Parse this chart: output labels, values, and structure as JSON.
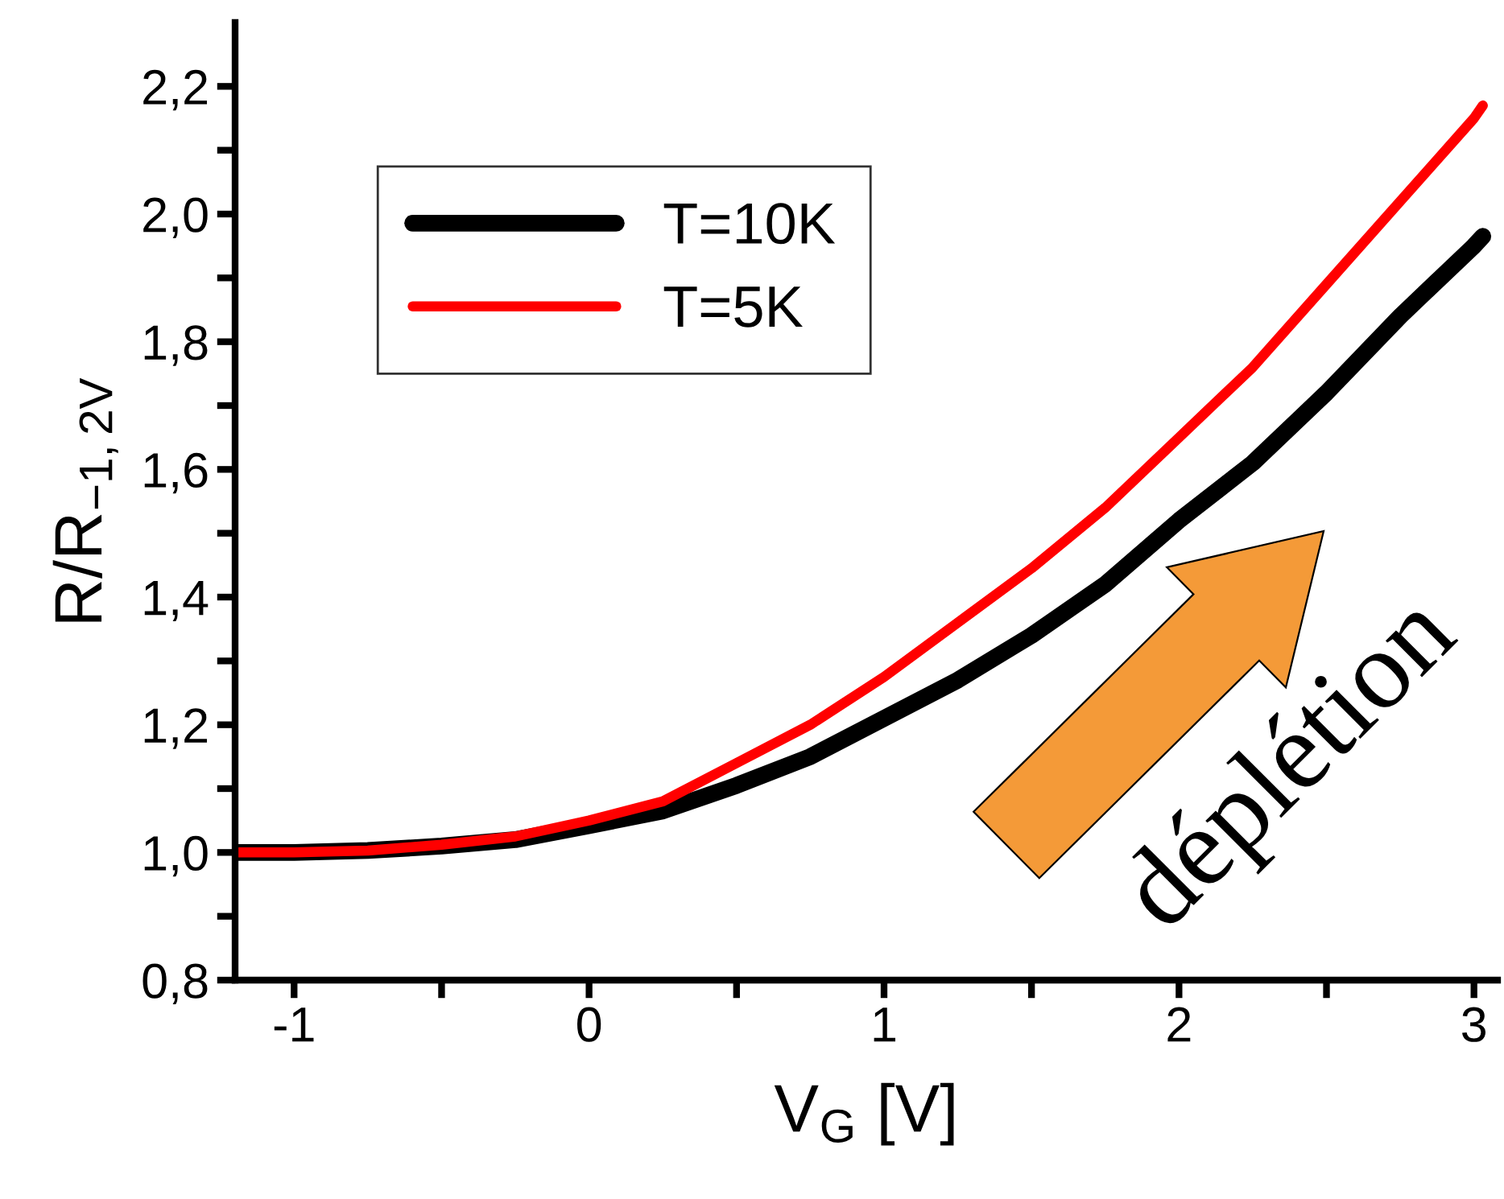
{
  "chart_data": {
    "type": "line",
    "xlabel": "V$_{G}$ [V]",
    "ylabel": "R/R$_{−1,2V}$",
    "xlim": [
      -1.2,
      3.08
    ],
    "ylim": [
      0.8,
      2.3
    ],
    "xticks": [
      {
        "value": -1,
        "label": "-1"
      },
      {
        "value": -0.5,
        "label": null
      },
      0,
      {
        "value": 0.5,
        "label": null
      },
      1,
      {
        "value": 1.5,
        "label": null
      },
      2,
      {
        "value": 2.5,
        "label": null
      },
      3
    ],
    "yticks": [
      {
        "value": 0.8,
        "label": "0,8"
      },
      {
        "value": 0.9,
        "label": null
      },
      {
        "value": 1.0,
        "label": "1,0"
      },
      {
        "value": 1.1,
        "label": null
      },
      {
        "value": 1.2,
        "label": "1,2"
      },
      {
        "value": 1.3,
        "label": null
      },
      {
        "value": 1.4,
        "label": "1,4"
      },
      {
        "value": 1.5,
        "label": null
      },
      {
        "value": 1.6,
        "label": "1,6"
      },
      {
        "value": 1.7,
        "label": null
      },
      {
        "value": 1.8,
        "label": "1,8"
      },
      {
        "value": 1.9,
        "label": null
      },
      {
        "value": 2.0,
        "label": "2,0"
      },
      {
        "value": 2.1,
        "label": null
      },
      {
        "value": 2.2,
        "label": "2,2"
      }
    ],
    "x": [
      -1.2,
      -1.0,
      -0.75,
      -0.5,
      -0.25,
      0,
      0.25,
      0.5,
      0.75,
      1.0,
      1.25,
      1.5,
      1.75,
      2.0,
      2.25,
      2.5,
      2.75,
      3.0,
      3.03
    ],
    "series": [
      {
        "name": "T=10K",
        "color": "#000000",
        "values": [
          1.0,
          1.0,
          1.003,
          1.01,
          1.02,
          1.042,
          1.065,
          1.105,
          1.15,
          1.21,
          1.27,
          1.34,
          1.42,
          1.52,
          1.61,
          1.72,
          1.84,
          1.95,
          1.965
        ]
      },
      {
        "name": "T=5K",
        "color": "#ff0000",
        "values": [
          1.0,
          1.0,
          1.003,
          1.012,
          1.025,
          1.05,
          1.08,
          1.14,
          1.2,
          1.275,
          1.36,
          1.445,
          1.54,
          1.65,
          1.76,
          1.89,
          2.02,
          2.15,
          2.17
        ]
      }
    ],
    "legend": "top left",
    "grid": false,
    "marker": "none",
    "line_style": "solid",
    "annotations": [
      "déplétion"
    ]
  }
}
